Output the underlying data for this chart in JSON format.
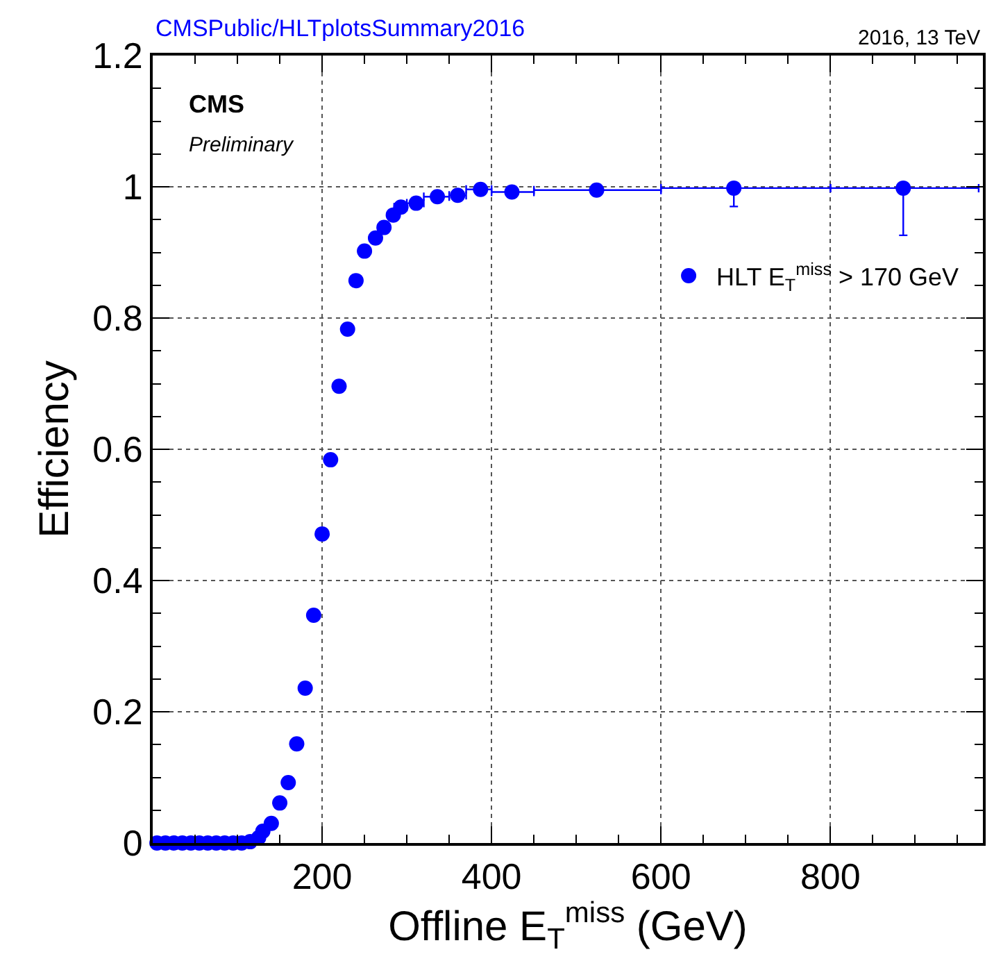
{
  "chart_data": {
    "type": "scatter",
    "ylabel": "Efficiency",
    "xlabel": "Offline E$_{T}$$^{miss}$ (GeV)",
    "annotations": [
      "CMSPublic/HLTplotsSummary2016",
      "2016, 13 TeV",
      "CMS",
      "Preliminary"
    ],
    "series": [
      {
        "name": "HLT E$_{T}$$^{miss}$ > 170 GeV",
        "color": "#0000ff",
        "x": [
          5,
          15,
          25,
          35,
          45,
          55,
          65,
          75,
          85,
          95,
          105,
          115,
          125,
          130,
          140,
          150,
          160,
          170,
          180,
          190,
          200,
          210,
          220,
          230,
          240,
          250,
          263,
          273,
          284,
          293,
          311,
          336,
          360,
          387,
          424,
          524,
          686,
          886
        ],
        "values": [
          0,
          0,
          0,
          0,
          0,
          0,
          0,
          0,
          0,
          0,
          0,
          0.002,
          0.008,
          0.018,
          0.03,
          0.061,
          0.092,
          0.151,
          0.236,
          0.347,
          0.471,
          0.584,
          0.696,
          0.783,
          0.857,
          0.902,
          0.922,
          0.938,
          0.957,
          0.969,
          0.975,
          0.985,
          0.987,
          0.996,
          0.992,
          0.995,
          0.998,
          0.998
        ],
        "errors": [
          null,
          null,
          null,
          null,
          null,
          null,
          null,
          null,
          null,
          null,
          null,
          null,
          null,
          null,
          null,
          null,
          null,
          null,
          null,
          null,
          null,
          null,
          0.008,
          0.008,
          0.008,
          null,
          null,
          null,
          null,
          null,
          null,
          null,
          null,
          null,
          null,
          null,
          [
            0.97,
            1.0
          ],
          [
            0.926,
            1.0
          ]
        ],
        "xerrors": [
          null,
          null,
          null,
          null,
          null,
          null,
          null,
          null,
          null,
          null,
          null,
          null,
          null,
          null,
          null,
          null,
          null,
          null,
          null,
          null,
          null,
          null,
          null,
          null,
          null,
          null,
          null,
          null,
          null,
          [
            285,
            300
          ],
          [
            300,
            320
          ],
          [
            320,
            350
          ],
          [
            350,
            370
          ],
          [
            370,
            400
          ],
          [
            400,
            450
          ],
          [
            450,
            600
          ],
          [
            600,
            800
          ],
          [
            800,
            975
          ]
        ]
      }
    ],
    "xlim": [
      0,
      980
    ],
    "xticks": [
      200,
      400,
      600,
      800
    ],
    "ylim": [
      0,
      1.2
    ],
    "yticks": [
      0,
      0.2,
      0.4,
      0.6,
      0.8,
      1,
      1.2
    ],
    "grid": true,
    "legend": "right",
    "marker": "circle"
  }
}
